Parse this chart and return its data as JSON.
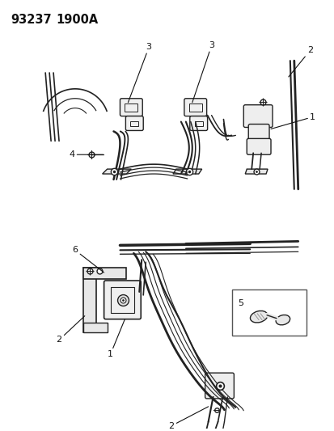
{
  "title_part": "93237",
  "title_fig": "1900A",
  "bg_color": "#ffffff",
  "line_color": "#222222",
  "text_color": "#111111",
  "fig_width": 4.14,
  "fig_height": 5.33,
  "dpi": 100
}
